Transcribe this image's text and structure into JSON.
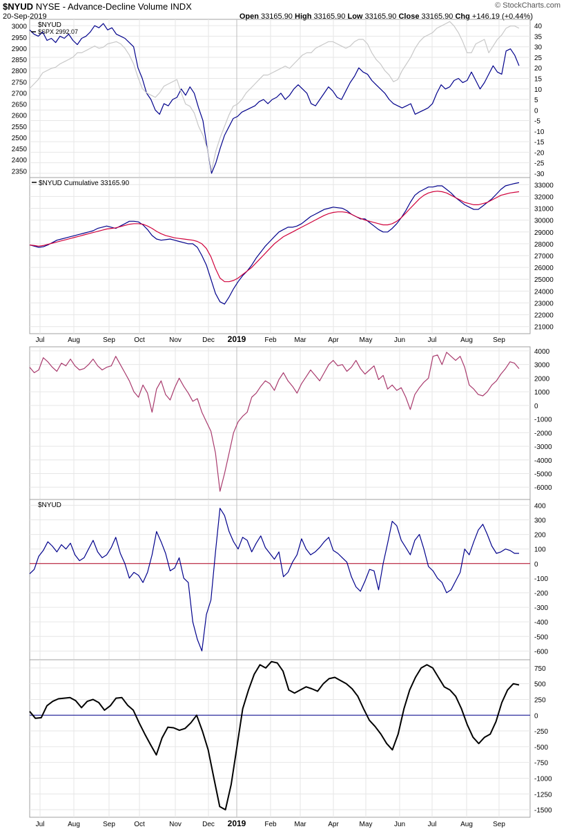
{
  "header": {
    "symbol": "$NYUD",
    "description": "NYSE - Advance-Decline Volume INDX",
    "date": "20-Sep-2019",
    "logo": "© StockCharts.com",
    "open_label": "Open",
    "open": "33165.90",
    "high_label": "High",
    "high": "33165.90",
    "low_label": "Low",
    "low": "33165.90",
    "close_label": "Close",
    "close": "33165.90",
    "chg_label": "Chg",
    "chg": "+146.19 (+0.44%)"
  },
  "chart_data": [
    {
      "type": "line",
      "panel": "price",
      "legend": [
        "$NYUD",
        "$SPX 2992.07"
      ],
      "left_axis_ticks": [
        3000,
        2950,
        2900,
        2850,
        2800,
        2750,
        2700,
        2650,
        2600,
        2550,
        2500,
        2450,
        2400,
        2350
      ],
      "right_axis_ticks": [
        40,
        35,
        30,
        25,
        20,
        15,
        10,
        5,
        0,
        -5,
        -10,
        -15,
        -20,
        -25,
        -30
      ],
      "ylim_left": [
        2320,
        3030
      ],
      "ylim_right": [
        -32,
        43
      ],
      "series": [
        {
          "name": "$NYUD",
          "color": "#00008b",
          "axis": "right",
          "values": [
            38,
            36,
            35,
            37,
            33,
            34,
            32,
            35,
            34,
            36,
            33,
            31,
            34,
            35,
            37,
            40,
            39,
            41,
            38,
            39,
            36,
            35,
            34,
            32,
            30,
            20,
            15,
            8,
            5,
            0,
            -2,
            3,
            2,
            5,
            6,
            10,
            7,
            11,
            8,
            1,
            -5,
            -18,
            -30,
            -25,
            -18,
            -12,
            -8,
            -4,
            -3,
            -1,
            0,
            1,
            2,
            4,
            5,
            3,
            5,
            6,
            8,
            5,
            7,
            10,
            12,
            10,
            8,
            3,
            2,
            5,
            8,
            11,
            9,
            6,
            5,
            9,
            13,
            16,
            20,
            18,
            17,
            14,
            12,
            10,
            8,
            5,
            3,
            2,
            1,
            2,
            3,
            -2,
            -1,
            0,
            1,
            3,
            8,
            12,
            10,
            11,
            14,
            15,
            13,
            14,
            18,
            14,
            10,
            13,
            17,
            21,
            18,
            17,
            28,
            29,
            26,
            21
          ]
        },
        {
          "name": "$SPX",
          "color": "#c8c8c8",
          "axis": "left",
          "values": [
            2720,
            2740,
            2760,
            2790,
            2800,
            2810,
            2815,
            2830,
            2840,
            2850,
            2860,
            2880,
            2880,
            2890,
            2900,
            2910,
            2900,
            2905,
            2920,
            2925,
            2930,
            2920,
            2900,
            2870,
            2830,
            2770,
            2720,
            2700,
            2690,
            2680,
            2700,
            2730,
            2740,
            2750,
            2760,
            2700,
            2650,
            2640,
            2610,
            2550,
            2510,
            2450,
            2350,
            2440,
            2500,
            2550,
            2600,
            2640,
            2650,
            2670,
            2700,
            2720,
            2740,
            2760,
            2780,
            2780,
            2790,
            2800,
            2810,
            2820,
            2810,
            2830,
            2850,
            2870,
            2880,
            2880,
            2900,
            2910,
            2920,
            2930,
            2930,
            2920,
            2910,
            2900,
            2910,
            2930,
            2940,
            2940,
            2920,
            2880,
            2850,
            2830,
            2800,
            2780,
            2750,
            2760,
            2800,
            2830,
            2860,
            2900,
            2930,
            2950,
            2960,
            2970,
            2990,
            3000,
            3010,
            3020,
            3000,
            2970,
            2930,
            2880,
            2880,
            2920,
            2930,
            2940,
            2880,
            2910,
            2940,
            2960,
            2990,
            3000,
            3000,
            2990
          ]
        }
      ]
    },
    {
      "type": "line",
      "panel": "cumulative",
      "legend": [
        "$NYUD Cumulative 33165.90"
      ],
      "right_axis_ticks": [
        33000,
        32000,
        31000,
        30000,
        29000,
        28000,
        27000,
        26000,
        25000,
        24000,
        23000,
        22000,
        21000
      ],
      "ylim": [
        20400,
        33600
      ],
      "series": [
        {
          "name": "$NYUD Cumulative",
          "color": "#00008b",
          "values": [
            27900,
            27800,
            27700,
            27750,
            27900,
            28100,
            28300,
            28400,
            28500,
            28600,
            28700,
            28800,
            28900,
            29000,
            29100,
            29300,
            29400,
            29500,
            29400,
            29300,
            29500,
            29700,
            29900,
            29900,
            29850,
            29600,
            29200,
            28700,
            28400,
            28300,
            28350,
            28400,
            28300,
            28200,
            28100,
            28000,
            28000,
            27700,
            27000,
            26200,
            25000,
            23800,
            23100,
            22900,
            23500,
            24200,
            24800,
            25300,
            25700,
            26200,
            26800,
            27300,
            27800,
            28200,
            28600,
            29000,
            29200,
            29400,
            29400,
            29500,
            29700,
            30000,
            30300,
            30500,
            30700,
            30900,
            31000,
            31100,
            31050,
            31000,
            30800,
            30500,
            30300,
            30100,
            30100,
            29800,
            29500,
            29200,
            29000,
            29000,
            29300,
            29700,
            30200,
            30800,
            31500,
            32100,
            32400,
            32600,
            32800,
            32800,
            32900,
            32900,
            32600,
            32300,
            31900,
            31600,
            31300,
            31100,
            30900,
            30900,
            31200,
            31500,
            31800,
            32200,
            32600,
            32900,
            33000,
            33100,
            33166
          ]
        },
        {
          "name": "MA",
          "color": "#d0003a",
          "values": [
            27900,
            27850,
            27800,
            27850,
            27950,
            28050,
            28150,
            28250,
            28350,
            28450,
            28550,
            28650,
            28750,
            28850,
            28950,
            29050,
            29150,
            29250,
            29300,
            29350,
            29450,
            29550,
            29650,
            29700,
            29700,
            29650,
            29500,
            29300,
            29050,
            28850,
            28700,
            28600,
            28500,
            28450,
            28400,
            28350,
            28300,
            28200,
            28000,
            27600,
            26900,
            25900,
            25100,
            24800,
            24800,
            24900,
            25100,
            25400,
            25700,
            26000,
            26400,
            26800,
            27200,
            27600,
            28000,
            28300,
            28600,
            28800,
            29000,
            29200,
            29400,
            29600,
            29800,
            30000,
            30200,
            30400,
            30550,
            30650,
            30700,
            30700,
            30650,
            30500,
            30300,
            30150,
            30000,
            29900,
            29800,
            29700,
            29600,
            29600,
            29700,
            29900,
            30200,
            30600,
            31000,
            31400,
            31800,
            32100,
            32300,
            32400,
            32450,
            32400,
            32300,
            32100,
            31900,
            31700,
            31500,
            31400,
            31300,
            31300,
            31400,
            31500,
            31700,
            31900,
            32100,
            32200,
            32300,
            32350,
            32400
          ]
        }
      ]
    },
    {
      "type": "line",
      "panel": "oscillator-1",
      "legend": [],
      "right_axis_ticks": [
        4000,
        3000,
        2000,
        1000,
        0,
        -1000,
        -2000,
        -3000,
        -4000,
        -5000,
        -6000
      ],
      "ylim": [
        -6900,
        4300
      ],
      "series": [
        {
          "name": "",
          "color": "#a8396c",
          "values": [
            2800,
            2400,
            2600,
            3500,
            3200,
            2800,
            2500,
            3100,
            2900,
            3400,
            2900,
            2600,
            2700,
            3000,
            3400,
            2900,
            2600,
            2800,
            2900,
            3600,
            3000,
            2400,
            1800,
            1000,
            600,
            1500,
            900,
            -500,
            1200,
            1800,
            800,
            400,
            1300,
            2000,
            1400,
            900,
            300,
            500,
            -500,
            -1200,
            -1900,
            -3500,
            -6300,
            -5000,
            -3500,
            -2000,
            -1200,
            -800,
            -500,
            600,
            900,
            1400,
            1800,
            1600,
            1100,
            1900,
            2400,
            1800,
            1400,
            900,
            1600,
            2100,
            2600,
            2200,
            1800,
            2400,
            3000,
            3300,
            2900,
            3000,
            2500,
            2800,
            3300,
            2700,
            2300,
            2600,
            2900,
            1900,
            2200,
            1200,
            1500,
            1100,
            1300,
            600,
            -300,
            800,
            1300,
            1700,
            2000,
            3600,
            3700,
            3000,
            3900,
            3600,
            3300,
            3600,
            2800,
            1500,
            1200,
            800,
            700,
            1000,
            1500,
            1800,
            2300,
            2700,
            3200,
            3100,
            2700
          ]
        }
      ]
    },
    {
      "type": "line",
      "panel": "oscillator-2",
      "legend": [
        "$NYUD"
      ],
      "right_axis_ticks": [
        400,
        300,
        200,
        100,
        0,
        -100,
        -200,
        -300,
        -400,
        -500,
        -600
      ],
      "ylim": [
        -660,
        440
      ],
      "reference_line": 0,
      "series": [
        {
          "name": "$NYUD",
          "color": "#00008b",
          "values": [
            -70,
            -40,
            50,
            90,
            150,
            120,
            80,
            130,
            100,
            140,
            60,
            20,
            40,
            100,
            160,
            80,
            40,
            60,
            110,
            180,
            70,
            0,
            -100,
            -60,
            -80,
            -130,
            -60,
            60,
            220,
            150,
            70,
            -50,
            -30,
            40,
            -100,
            -130,
            -400,
            -520,
            -600,
            -350,
            -250,
            80,
            380,
            330,
            220,
            150,
            100,
            180,
            160,
            80,
            140,
            190,
            110,
            70,
            30,
            80,
            -90,
            -60,
            10,
            60,
            170,
            100,
            60,
            80,
            110,
            150,
            180,
            90,
            70,
            40,
            10,
            -90,
            -160,
            -190,
            -120,
            -40,
            -50,
            -180,
            0,
            140,
            290,
            260,
            160,
            110,
            60,
            160,
            200,
            100,
            -20,
            -50,
            -100,
            -130,
            -200,
            -180,
            -120,
            -60,
            100,
            60,
            150,
            230,
            270,
            200,
            120,
            70,
            80,
            100,
            90,
            70,
            70
          ]
        }
      ]
    },
    {
      "type": "line",
      "panel": "oscillator-3",
      "legend": [],
      "right_axis_ticks": [
        750,
        500,
        250,
        0,
        -250,
        -500,
        -750,
        -1000,
        -1250,
        -1500
      ],
      "ylim": [
        -1620,
        880
      ],
      "reference_line": 0,
      "series": [
        {
          "name": "",
          "color": "#000000",
          "values": [
            60,
            -50,
            -40,
            150,
            220,
            260,
            270,
            280,
            230,
            120,
            220,
            250,
            200,
            80,
            150,
            270,
            280,
            160,
            80,
            -120,
            -300,
            -470,
            -630,
            -360,
            -190,
            -200,
            -240,
            -210,
            -120,
            0,
            -250,
            -550,
            -1000,
            -1450,
            -1500,
            -1100,
            -500,
            100,
            400,
            650,
            800,
            750,
            850,
            830,
            700,
            400,
            350,
            400,
            450,
            420,
            380,
            500,
            580,
            600,
            550,
            500,
            420,
            300,
            100,
            -80,
            -180,
            -300,
            -450,
            -550,
            -300,
            100,
            400,
            600,
            750,
            800,
            750,
            600,
            450,
            400,
            300,
            100,
            -150,
            -350,
            -450,
            -350,
            -300,
            -100,
            200,
            400,
            500,
            480
          ]
        }
      ]
    }
  ],
  "x_axis": {
    "labels": [
      "Jul",
      "Aug",
      "Sep",
      "Oct",
      "Nov",
      "Dec",
      "2019",
      "Feb",
      "Mar",
      "Apr",
      "May",
      "Jun",
      "Jul",
      "Aug",
      "Sep"
    ],
    "year_label": "2019"
  },
  "colors": {
    "panel_border": "#a0a0a0",
    "grid": "#e6e6e6",
    "zero_line_osc2": "#b00020",
    "zero_line_osc3": "#00008b"
  }
}
